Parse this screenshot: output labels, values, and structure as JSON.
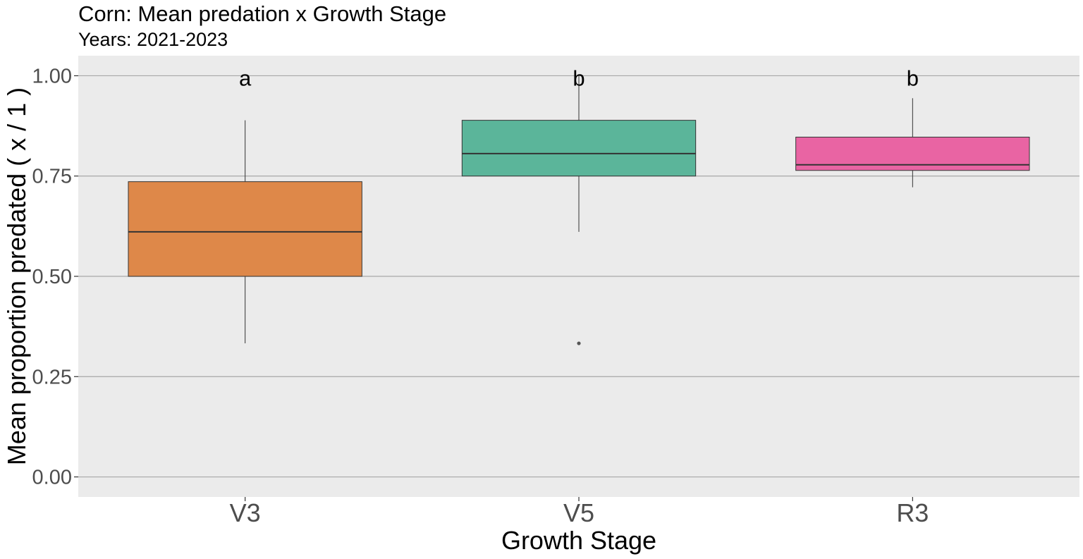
{
  "chart_data": {
    "type": "boxplot",
    "title": "Corn: Mean predation x Growth Stage",
    "subtitle": "Years: 2021-2023",
    "xlabel": "Growth Stage",
    "ylabel": "Mean proportion predated ( x / 1 )",
    "ylim": [
      -0.05,
      1.05
    ],
    "yticks": [
      0.0,
      0.25,
      0.5,
      0.75,
      1.0
    ],
    "ytick_labels": [
      "0.00",
      "0.25",
      "0.50",
      "0.75",
      "1.00"
    ],
    "grid": "horizontal",
    "legend": "none",
    "categories": [
      "V3",
      "V5",
      "R3"
    ],
    "boxes": [
      {
        "category": "V3",
        "whisker_low": 0.333,
        "q1": 0.5,
        "median": 0.611,
        "q3": 0.736,
        "whisker_high": 0.889,
        "outliers": [],
        "letter": "a",
        "color": "#DE8849"
      },
      {
        "category": "V5",
        "whisker_low": 0.611,
        "q1": 0.75,
        "median": 0.806,
        "q3": 0.889,
        "whisker_high": 1.0,
        "outliers": [
          0.333
        ],
        "letter": "b",
        "color": "#5BB59A"
      },
      {
        "category": "R3",
        "whisker_low": 0.722,
        "q1": 0.764,
        "median": 0.778,
        "q3": 0.847,
        "whisker_high": 0.944,
        "outliers": [],
        "letter": "b",
        "color": "#E964A3"
      }
    ],
    "letter_y": 1.0
  }
}
